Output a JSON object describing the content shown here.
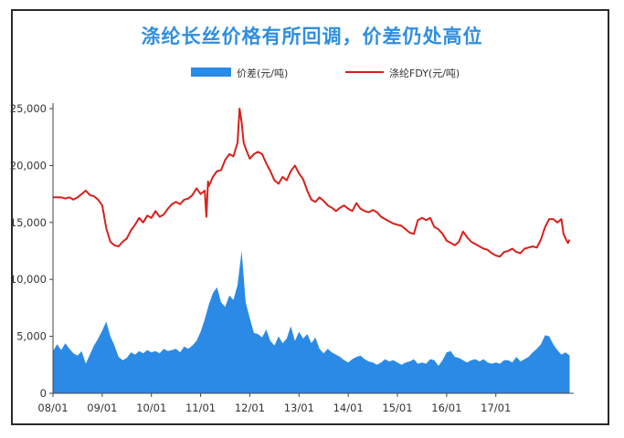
{
  "chart_data": {
    "type": "area+line",
    "title": "涤纶长丝价格有所回调，价差仍处高位",
    "legend": "top-center",
    "grid": false,
    "x_ticks": [
      "08/01",
      "09/01",
      "10/01",
      "11/01",
      "12/01",
      "13/01",
      "14/01",
      "15/01",
      "16/01",
      "17/01"
    ],
    "y_ticks": [
      "0",
      "5,000",
      "10,000",
      "15,000",
      "20,000",
      "25,000"
    ],
    "ylim": [
      0,
      25000
    ],
    "x_unit": "months since 2008-01",
    "series": [
      {
        "name": "价差(元/吨)",
        "type": "area",
        "color": "#2a8ae6",
        "points": [
          [
            0,
            3700
          ],
          [
            1,
            4300
          ],
          [
            2,
            3800
          ],
          [
            3,
            4400
          ],
          [
            4,
            3900
          ],
          [
            5,
            3500
          ],
          [
            6,
            3300
          ],
          [
            7,
            3700
          ],
          [
            8,
            2600
          ],
          [
            9,
            3400
          ],
          [
            10,
            4200
          ],
          [
            11,
            4800
          ],
          [
            12,
            5500
          ],
          [
            13,
            6300
          ],
          [
            14,
            5000
          ],
          [
            15,
            4200
          ],
          [
            16,
            3200
          ],
          [
            17,
            2900
          ],
          [
            18,
            3100
          ],
          [
            19,
            3600
          ],
          [
            20,
            3400
          ],
          [
            21,
            3700
          ],
          [
            22,
            3500
          ],
          [
            23,
            3800
          ],
          [
            24,
            3600
          ],
          [
            25,
            3700
          ],
          [
            26,
            3500
          ],
          [
            27,
            3900
          ],
          [
            28,
            3700
          ],
          [
            29,
            3800
          ],
          [
            30,
            3900
          ],
          [
            31,
            3600
          ],
          [
            32,
            4100
          ],
          [
            33,
            3900
          ],
          [
            34,
            4200
          ],
          [
            35,
            4600
          ],
          [
            36,
            5400
          ],
          [
            37,
            6500
          ],
          [
            38,
            7800
          ],
          [
            39,
            8800
          ],
          [
            40,
            9300
          ],
          [
            41,
            8000
          ],
          [
            42,
            7600
          ],
          [
            43,
            8600
          ],
          [
            44,
            8200
          ],
          [
            45,
            9500
          ],
          [
            46,
            12500
          ],
          [
            47,
            8000
          ],
          [
            48,
            6600
          ],
          [
            49,
            5300
          ],
          [
            50,
            5200
          ],
          [
            51,
            4900
          ],
          [
            52,
            5600
          ],
          [
            53,
            4600
          ],
          [
            54,
            4200
          ],
          [
            55,
            5000
          ],
          [
            56,
            4400
          ],
          [
            57,
            4800
          ],
          [
            58,
            5900
          ],
          [
            59,
            4600
          ],
          [
            60,
            5400
          ],
          [
            61,
            4800
          ],
          [
            62,
            5200
          ],
          [
            63,
            4400
          ],
          [
            64,
            4900
          ],
          [
            65,
            3900
          ],
          [
            66,
            3500
          ],
          [
            67,
            3900
          ],
          [
            68,
            3600
          ],
          [
            69,
            3400
          ],
          [
            70,
            3200
          ],
          [
            71,
            2900
          ],
          [
            72,
            2700
          ],
          [
            73,
            3000
          ],
          [
            74,
            3200
          ],
          [
            75,
            3300
          ],
          [
            76,
            3000
          ],
          [
            77,
            2800
          ],
          [
            78,
            2700
          ],
          [
            79,
            2500
          ],
          [
            80,
            2700
          ],
          [
            81,
            3000
          ],
          [
            82,
            2800
          ],
          [
            83,
            2900
          ],
          [
            84,
            2700
          ],
          [
            85,
            2500
          ],
          [
            86,
            2700
          ],
          [
            87,
            2800
          ],
          [
            88,
            3000
          ],
          [
            89,
            2600
          ],
          [
            90,
            2700
          ],
          [
            91,
            2600
          ],
          [
            92,
            3000
          ],
          [
            93,
            2900
          ],
          [
            94,
            2400
          ],
          [
            95,
            2900
          ],
          [
            96,
            3600
          ],
          [
            97,
            3700
          ],
          [
            98,
            3200
          ],
          [
            99,
            3100
          ],
          [
            100,
            2900
          ],
          [
            101,
            2700
          ],
          [
            102,
            2900
          ],
          [
            103,
            3000
          ],
          [
            104,
            2800
          ],
          [
            105,
            3000
          ],
          [
            106,
            2700
          ],
          [
            107,
            2600
          ],
          [
            108,
            2700
          ],
          [
            109,
            2600
          ],
          [
            110,
            2900
          ],
          [
            111,
            2900
          ],
          [
            112,
            2700
          ],
          [
            113,
            3200
          ],
          [
            114,
            2800
          ],
          [
            115,
            3000
          ],
          [
            116,
            3200
          ],
          [
            117,
            3600
          ],
          [
            118,
            3900
          ],
          [
            119,
            4300
          ],
          [
            120,
            5100
          ],
          [
            121,
            5000
          ],
          [
            122,
            4300
          ],
          [
            123,
            3800
          ],
          [
            124,
            3400
          ],
          [
            125,
            3600
          ],
          [
            126,
            3300
          ]
        ]
      },
      {
        "name": "涤纶FDY(元/吨)",
        "type": "line",
        "color": "#d8201c",
        "points": [
          [
            0,
            17200
          ],
          [
            2,
            17200
          ],
          [
            3,
            17100
          ],
          [
            4,
            17200
          ],
          [
            5,
            17000
          ],
          [
            6,
            17200
          ],
          [
            7,
            17500
          ],
          [
            8,
            17800
          ],
          [
            9,
            17400
          ],
          [
            10,
            17300
          ],
          [
            11,
            17000
          ],
          [
            12,
            16500
          ],
          [
            13,
            14500
          ],
          [
            14,
            13300
          ],
          [
            15,
            13000
          ],
          [
            16,
            12900
          ],
          [
            17,
            13300
          ],
          [
            18,
            13600
          ],
          [
            19,
            14300
          ],
          [
            20,
            14800
          ],
          [
            21,
            15400
          ],
          [
            22,
            15000
          ],
          [
            23,
            15600
          ],
          [
            24,
            15400
          ],
          [
            25,
            16000
          ],
          [
            26,
            15500
          ],
          [
            27,
            15700
          ],
          [
            28,
            16200
          ],
          [
            29,
            16600
          ],
          [
            30,
            16800
          ],
          [
            31,
            16600
          ],
          [
            32,
            17000
          ],
          [
            33,
            17100
          ],
          [
            34,
            17400
          ],
          [
            35,
            18000
          ],
          [
            36,
            17500
          ],
          [
            37,
            17800
          ],
          [
            37.4,
            15500
          ],
          [
            37.8,
            18600
          ],
          [
            38,
            18200
          ],
          [
            39,
            19000
          ],
          [
            40,
            19500
          ],
          [
            41,
            19600
          ],
          [
            42,
            20500
          ],
          [
            43,
            21000
          ],
          [
            44,
            20800
          ],
          [
            45,
            22000
          ],
          [
            45.5,
            25000
          ],
          [
            46,
            23800
          ],
          [
            46.5,
            22000
          ],
          [
            47,
            21500
          ],
          [
            48,
            20600
          ],
          [
            49,
            21000
          ],
          [
            50,
            21200
          ],
          [
            51,
            21000
          ],
          [
            52,
            20200
          ],
          [
            53,
            19500
          ],
          [
            54,
            18700
          ],
          [
            55,
            18400
          ],
          [
            56,
            19000
          ],
          [
            57,
            18700
          ],
          [
            58,
            19500
          ],
          [
            59,
            20000
          ],
          [
            60,
            19300
          ],
          [
            61,
            18800
          ],
          [
            62,
            17800
          ],
          [
            63,
            17000
          ],
          [
            64,
            16800
          ],
          [
            65,
            17200
          ],
          [
            66,
            16900
          ],
          [
            67,
            16500
          ],
          [
            68,
            16300
          ],
          [
            69,
            16000
          ],
          [
            70,
            16300
          ],
          [
            71,
            16500
          ],
          [
            72,
            16200
          ],
          [
            73,
            16000
          ],
          [
            74,
            16700
          ],
          [
            75,
            16200
          ],
          [
            76,
            16000
          ],
          [
            77,
            15900
          ],
          [
            78,
            16100
          ],
          [
            79,
            15900
          ],
          [
            80,
            15500
          ],
          [
            81,
            15300
          ],
          [
            82,
            15100
          ],
          [
            83,
            14900
          ],
          [
            84,
            14800
          ],
          [
            85,
            14700
          ],
          [
            86,
            14400
          ],
          [
            87,
            14100
          ],
          [
            88,
            14000
          ],
          [
            89,
            15200
          ],
          [
            90,
            15400
          ],
          [
            91,
            15200
          ],
          [
            92,
            15400
          ],
          [
            93,
            14600
          ],
          [
            94,
            14400
          ],
          [
            95,
            14000
          ],
          [
            96,
            13400
          ],
          [
            97,
            13200
          ],
          [
            98,
            13000
          ],
          [
            99,
            13300
          ],
          [
            100,
            14200
          ],
          [
            101,
            13700
          ],
          [
            102,
            13300
          ],
          [
            103,
            13100
          ],
          [
            104,
            12900
          ],
          [
            105,
            12700
          ],
          [
            106,
            12600
          ],
          [
            107,
            12300
          ],
          [
            108,
            12100
          ],
          [
            109,
            12000
          ],
          [
            110,
            12400
          ],
          [
            111,
            12500
          ],
          [
            112,
            12700
          ],
          [
            113,
            12400
          ],
          [
            114,
            12300
          ],
          [
            115,
            12700
          ],
          [
            116,
            12800
          ],
          [
            117,
            12900
          ],
          [
            118,
            12800
          ],
          [
            119,
            13500
          ],
          [
            120,
            14600
          ],
          [
            121,
            15300
          ],
          [
            122,
            15300
          ],
          [
            123,
            15000
          ],
          [
            124,
            15300
          ],
          [
            124.5,
            14000
          ],
          [
            125,
            13600
          ],
          [
            125.6,
            13200
          ],
          [
            126,
            13500
          ]
        ]
      }
    ]
  }
}
